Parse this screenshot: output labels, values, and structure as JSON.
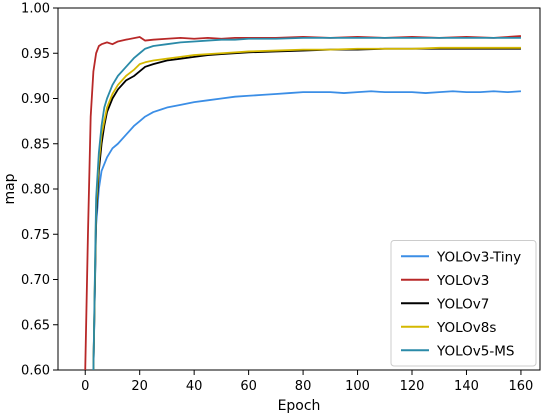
{
  "chart_data": {
    "type": "line",
    "title": "",
    "xlabel": "Epoch",
    "ylabel": "map",
    "xlim": [
      -10,
      167
    ],
    "ylim": [
      0.6,
      1.0
    ],
    "xticks": [
      0,
      20,
      40,
      60,
      80,
      100,
      120,
      140,
      160
    ],
    "yticks": [
      0.6,
      0.65,
      0.7,
      0.75,
      0.8,
      0.85,
      0.9,
      0.95,
      1.0
    ],
    "xtick_labels": [
      "0",
      "20",
      "40",
      "60",
      "80",
      "100",
      "120",
      "140",
      "160"
    ],
    "ytick_labels": [
      "0.60",
      "0.65",
      "0.70",
      "0.75",
      "0.80",
      "0.85",
      "0.90",
      "0.95",
      "1.00"
    ],
    "grid": false,
    "legend_position": "lower-right",
    "series": [
      {
        "name": "YOLOv3-Tiny",
        "color": "#3b8ee6",
        "x": [
          3,
          4,
          5,
          6,
          8,
          10,
          12,
          15,
          18,
          20,
          22,
          25,
          28,
          30,
          35,
          40,
          45,
          50,
          55,
          60,
          65,
          70,
          75,
          80,
          85,
          90,
          95,
          100,
          105,
          110,
          115,
          120,
          125,
          130,
          135,
          140,
          145,
          150,
          155,
          160
        ],
        "y": [
          0.6,
          0.76,
          0.8,
          0.82,
          0.835,
          0.845,
          0.85,
          0.86,
          0.87,
          0.875,
          0.88,
          0.885,
          0.888,
          0.89,
          0.893,
          0.896,
          0.898,
          0.9,
          0.902,
          0.903,
          0.904,
          0.905,
          0.906,
          0.907,
          0.907,
          0.907,
          0.906,
          0.907,
          0.908,
          0.907,
          0.907,
          0.907,
          0.906,
          0.907,
          0.908,
          0.907,
          0.907,
          0.908,
          0.907,
          0.908
        ]
      },
      {
        "name": "YOLOv3",
        "color": "#b82828",
        "x": [
          0,
          1,
          2,
          3,
          4,
          5,
          6,
          8,
          10,
          12,
          15,
          20,
          22,
          25,
          30,
          35,
          40,
          45,
          50,
          55,
          60,
          70,
          80,
          90,
          100,
          110,
          120,
          130,
          140,
          150,
          160
        ],
        "y": [
          0.6,
          0.75,
          0.88,
          0.93,
          0.95,
          0.958,
          0.96,
          0.962,
          0.96,
          0.963,
          0.965,
          0.968,
          0.964,
          0.965,
          0.966,
          0.967,
          0.966,
          0.967,
          0.966,
          0.967,
          0.967,
          0.967,
          0.968,
          0.967,
          0.968,
          0.967,
          0.968,
          0.967,
          0.968,
          0.967,
          0.969
        ]
      },
      {
        "name": "YOLOv7",
        "color": "#000000",
        "x": [
          3,
          4,
          5,
          6,
          7,
          8,
          10,
          12,
          15,
          18,
          20,
          22,
          25,
          30,
          35,
          40,
          45,
          50,
          55,
          60,
          70,
          80,
          90,
          100,
          110,
          120,
          130,
          140,
          150,
          160
        ],
        "y": [
          0.6,
          0.77,
          0.82,
          0.85,
          0.87,
          0.885,
          0.9,
          0.91,
          0.92,
          0.925,
          0.93,
          0.935,
          0.938,
          0.942,
          0.944,
          0.946,
          0.948,
          0.949,
          0.95,
          0.951,
          0.952,
          0.953,
          0.954,
          0.954,
          0.955,
          0.955,
          0.955,
          0.955,
          0.955,
          0.955
        ]
      },
      {
        "name": "YOLOv8s",
        "color": "#d4b800",
        "x": [
          3,
          4,
          5,
          6,
          7,
          8,
          10,
          12,
          15,
          18,
          20,
          22,
          25,
          30,
          35,
          40,
          45,
          50,
          55,
          60,
          70,
          80,
          90,
          100,
          110,
          120,
          130,
          140,
          150,
          160
        ],
        "y": [
          0.6,
          0.78,
          0.83,
          0.86,
          0.875,
          0.89,
          0.905,
          0.915,
          0.925,
          0.932,
          0.938,
          0.94,
          0.942,
          0.944,
          0.946,
          0.948,
          0.949,
          0.95,
          0.951,
          0.952,
          0.953,
          0.954,
          0.954,
          0.955,
          0.955,
          0.955,
          0.956,
          0.956,
          0.956,
          0.956
        ]
      },
      {
        "name": "YOLOv5-MS",
        "color": "#2a8aa8",
        "x": [
          3,
          4,
          5,
          6,
          7,
          8,
          10,
          12,
          15,
          18,
          20,
          22,
          25,
          30,
          35,
          40,
          45,
          50,
          55,
          60,
          70,
          80,
          90,
          100,
          110,
          120,
          130,
          140,
          150,
          160
        ],
        "y": [
          0.6,
          0.79,
          0.84,
          0.87,
          0.89,
          0.9,
          0.915,
          0.925,
          0.935,
          0.945,
          0.95,
          0.955,
          0.958,
          0.96,
          0.962,
          0.963,
          0.964,
          0.965,
          0.965,
          0.966,
          0.966,
          0.967,
          0.967,
          0.967,
          0.967,
          0.967,
          0.967,
          0.967,
          0.967,
          0.967
        ]
      }
    ]
  }
}
